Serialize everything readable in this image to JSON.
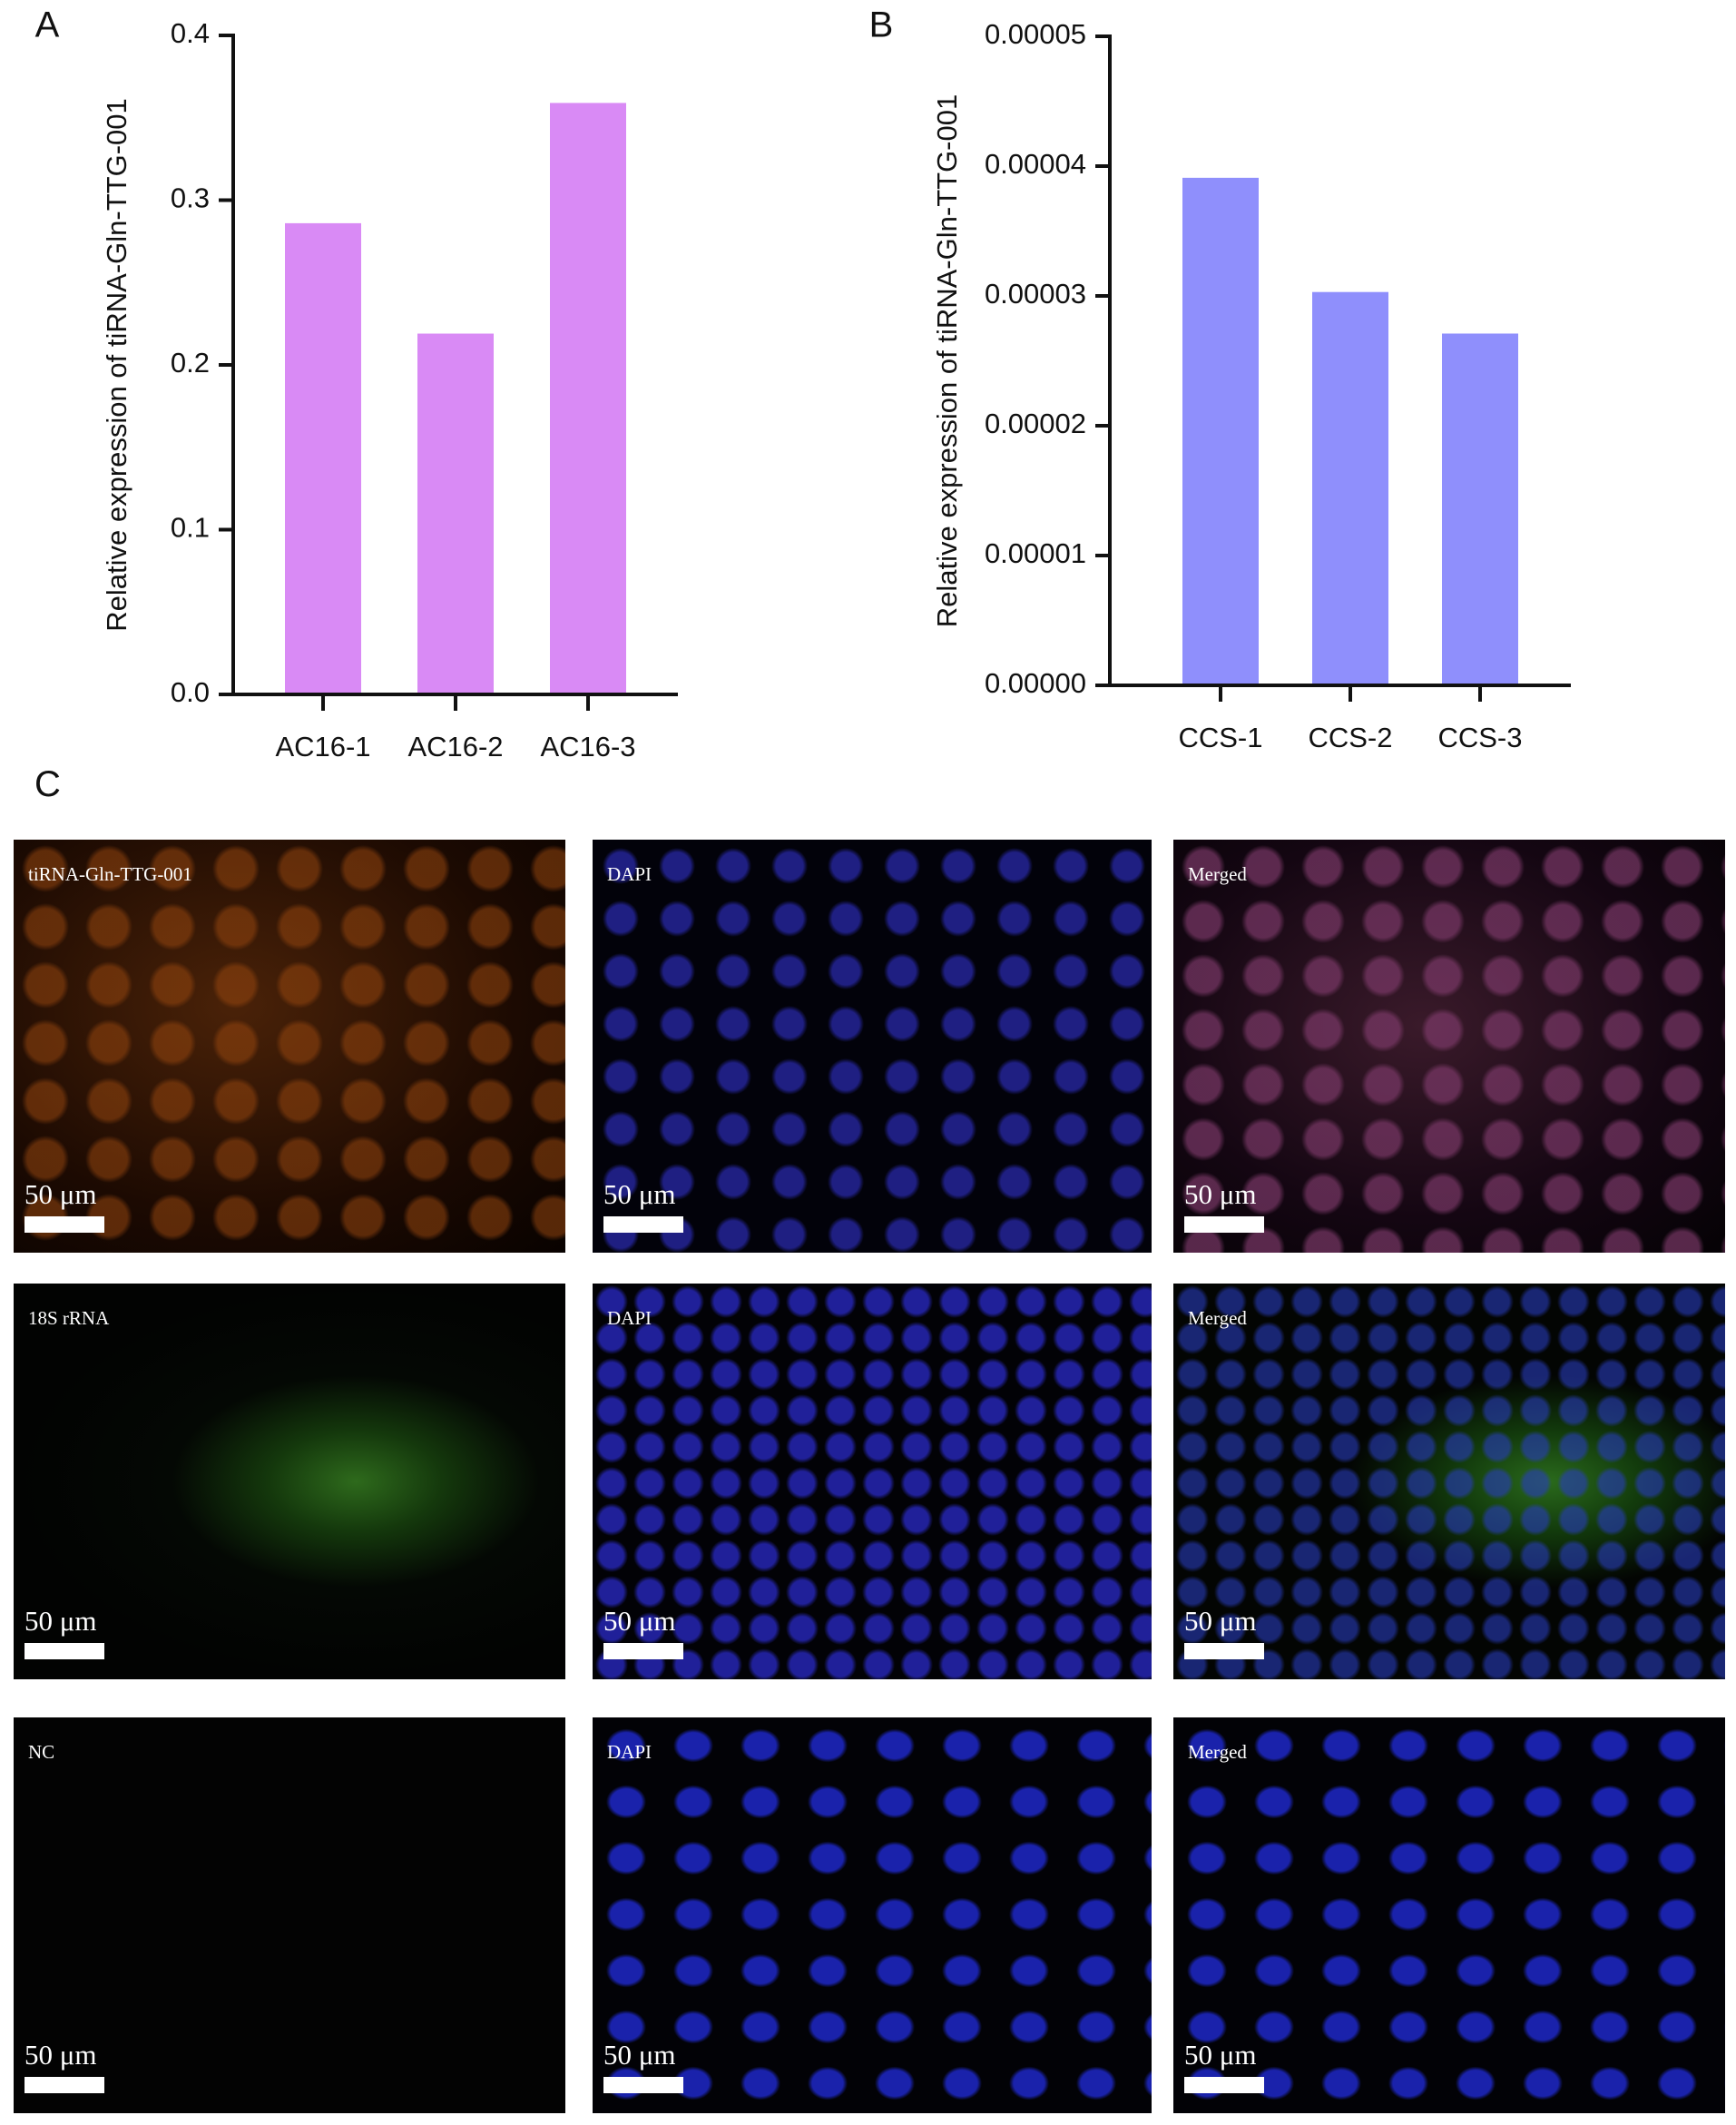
{
  "chart_data": [
    {
      "type": "bar",
      "panel": "A",
      "y_label": "Relative expression of tiRNA-Gln-TTG-001",
      "categories": [
        "AC16-1",
        "AC16-2",
        "AC16-3"
      ],
      "values": [
        0.286,
        0.219,
        0.359
      ],
      "color": "#d98af5",
      "ylim": [
        0,
        0.4
      ],
      "yticks": [
        {
          "value": 0,
          "label": "0.0"
        },
        0.1,
        0.2,
        0.3,
        0.4
      ]
    },
    {
      "type": "bar",
      "panel": "B",
      "y_label": "Relative expression of tiRNA-Gln-TTG-001",
      "categories": [
        "CCS-1",
        "CCS-2",
        "CCS-3"
      ],
      "values": [
        3.91e-05,
        3.03e-05,
        2.71e-05
      ],
      "color": "#8f8ffc",
      "ylim": [
        0,
        5e-05
      ],
      "yticks": [
        {
          "value": 0,
          "label": "0.00000"
        },
        {
          "value": 1e-05,
          "label": "0.00001"
        },
        {
          "value": 2e-05,
          "label": "0.00002"
        },
        {
          "value": 3e-05,
          "label": "0.00003"
        },
        {
          "value": 4e-05,
          "label": "0.00004"
        },
        {
          "value": 5e-05,
          "label": "0.00005"
        }
      ]
    }
  ],
  "panels": {
    "label": "C",
    "rows": [
      [
        {
          "title": "tiRNA-Gln-TTG-001",
          "scale": "50 μm"
        },
        {
          "title": "DAPI",
          "scale": "50 μm"
        },
        {
          "title": "Merged",
          "scale": "50 μm"
        }
      ],
      [
        {
          "title": "18S rRNA",
          "scale": "50 μm"
        },
        {
          "title": "DAPI",
          "scale": "50 μm"
        },
        {
          "title": "Merged",
          "scale": "50 μm"
        }
      ],
      [
        {
          "title": "NC",
          "scale": "50 μm"
        },
        {
          "title": "DAPI",
          "scale": "50 μm"
        },
        {
          "title": "Merged",
          "scale": "50 μm"
        }
      ]
    ]
  }
}
